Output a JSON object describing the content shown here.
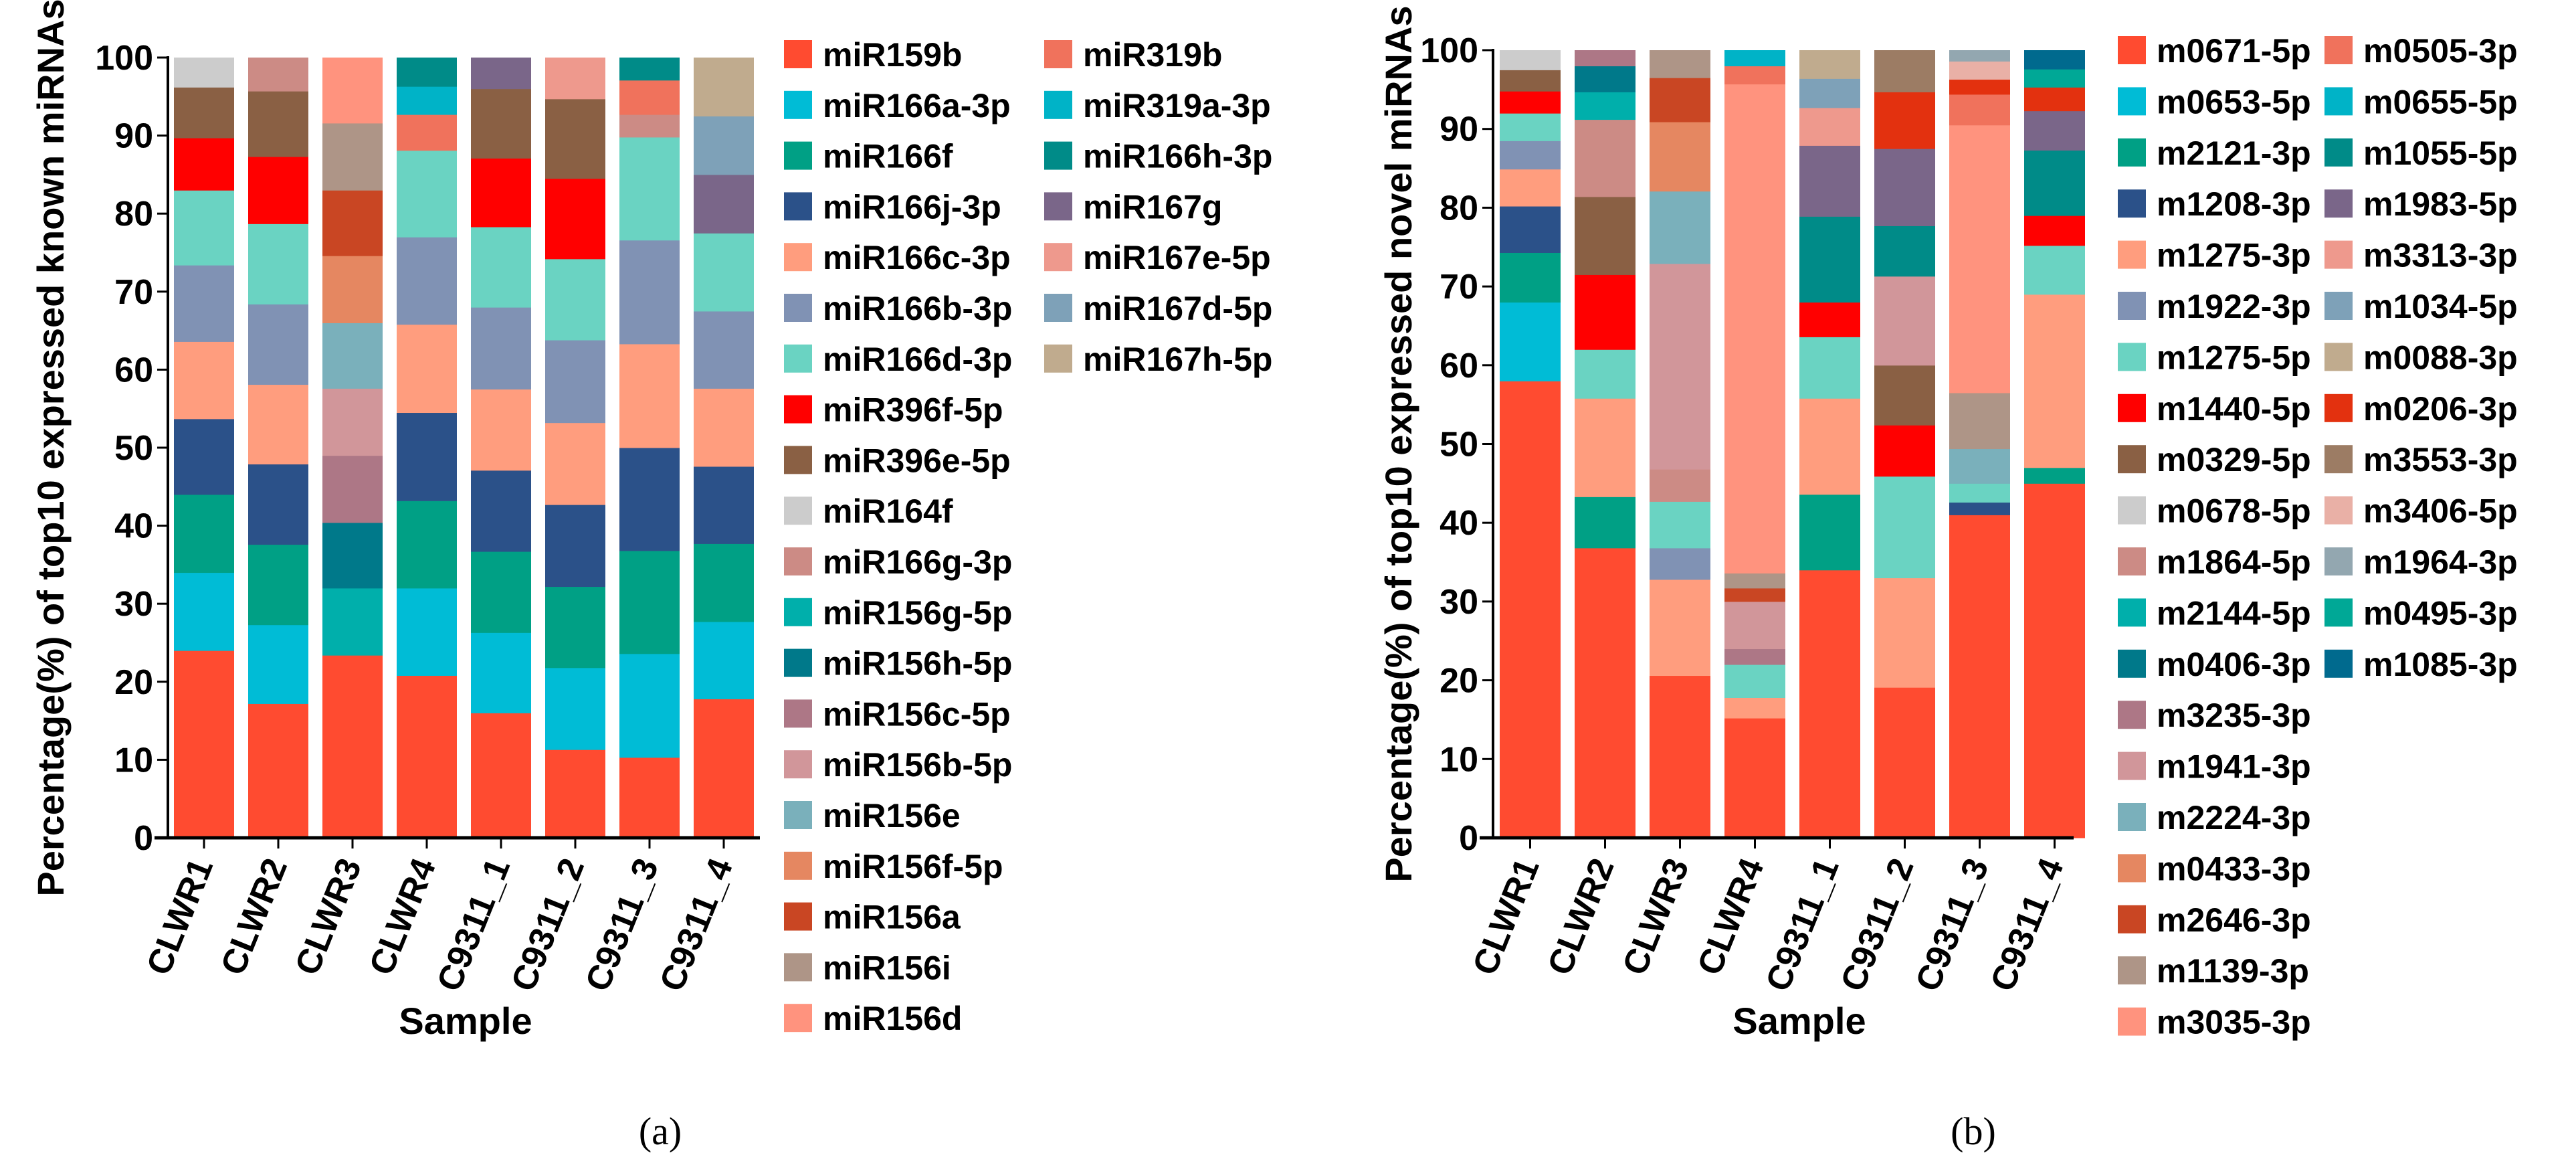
{
  "chart_data": [
    {
      "type": "bar",
      "stacked": true,
      "panel_label": "(a)",
      "title": "",
      "xlabel": "Sample",
      "ylabel": "Percentage(%) of top10 expressed known miRNAs",
      "ylim": [
        0,
        100
      ],
      "yticks": [
        0,
        10,
        20,
        30,
        40,
        50,
        60,
        70,
        80,
        90,
        100
      ],
      "legend_position": "right",
      "categories": [
        "CLWR1",
        "CLWR2",
        "CLWR3",
        "CLWR4",
        "C9311_1",
        "C9311_2",
        "C9311_3",
        "C9311_4"
      ],
      "legend_rows_first_column": 20,
      "series": [
        {
          "name": "miR159b",
          "color": "#FF4B30",
          "values": [
            24,
            17.2,
            23.4,
            20.8,
            16,
            11.3,
            10.3,
            17.8
          ]
        },
        {
          "name": "miR166a-3p",
          "color": "#00BCD6",
          "values": [
            10,
            10.1,
            0,
            11.2,
            10.3,
            10.5,
            13.3,
            9.9
          ]
        },
        {
          "name": "miR166f",
          "color": "#00A085",
          "values": [
            10,
            10.3,
            0,
            11.2,
            10.4,
            10.4,
            13.2,
            10
          ]
        },
        {
          "name": "miR166j-3p",
          "color": "#2B5189",
          "values": [
            9.7,
            10.3,
            0,
            11.3,
            10.4,
            10.5,
            13.2,
            9.9
          ]
        },
        {
          "name": "miR166c-3p",
          "color": "#FF9D7E",
          "values": [
            9.9,
            10.2,
            0,
            11.3,
            10.4,
            10.5,
            13.3,
            10
          ]
        },
        {
          "name": "miR166b-3p",
          "color": "#8092B4",
          "values": [
            9.8,
            10.3,
            0,
            11.2,
            10.5,
            10.6,
            13.3,
            9.9
          ]
        },
        {
          "name": "miR166d-3p",
          "color": "#6AD3C2",
          "values": [
            9.6,
            10.3,
            0,
            11.1,
            10.3,
            10.4,
            13.2,
            10
          ]
        },
        {
          "name": "miR396f-5p",
          "color": "#FF0000",
          "values": [
            6.7,
            8.6,
            0,
            0,
            8.8,
            10.3,
            0,
            0
          ]
        },
        {
          "name": "miR396e-5p",
          "color": "#8A6044",
          "values": [
            6.5,
            8.4,
            0,
            0,
            8.9,
            10.2,
            0,
            0
          ]
        },
        {
          "name": "miR164f",
          "color": "#CCCCCC",
          "values": [
            3.8,
            0,
            0,
            0,
            0,
            0,
            0,
            0
          ]
        },
        {
          "name": "miR166g-3p",
          "color": "#CC8B85",
          "values": [
            0,
            4.3,
            0,
            0,
            0,
            0,
            2.9,
            0
          ]
        },
        {
          "name": "miR156g-5p",
          "color": "#00AFAB",
          "values": [
            0,
            0,
            8.6,
            0,
            0,
            0,
            0,
            0
          ]
        },
        {
          "name": "miR156h-5p",
          "color": "#00798A",
          "values": [
            0,
            0,
            8.4,
            0,
            0,
            0,
            0,
            0
          ]
        },
        {
          "name": "miR156c-5p",
          "color": "#AD7786",
          "values": [
            0,
            0,
            8.6,
            0,
            0,
            0,
            0,
            0
          ]
        },
        {
          "name": "miR156b-5p",
          "color": "#D1969A",
          "values": [
            0,
            0,
            8.6,
            0,
            0,
            0,
            0,
            0
          ]
        },
        {
          "name": "miR156e",
          "color": "#7AB0BB",
          "values": [
            0,
            0,
            8.4,
            0,
            0,
            0,
            0,
            0
          ]
        },
        {
          "name": "miR156f-5p",
          "color": "#E58761",
          "values": [
            0,
            0,
            8.6,
            0,
            0,
            0,
            0,
            0
          ]
        },
        {
          "name": "miR156a",
          "color": "#C94623",
          "values": [
            0,
            0,
            8.4,
            0,
            0,
            0,
            0,
            0
          ]
        },
        {
          "name": "miR156i",
          "color": "#AE9587",
          "values": [
            0,
            0,
            8.6,
            0,
            0,
            0,
            0,
            0
          ]
        },
        {
          "name": "miR156d",
          "color": "#FF937E",
          "values": [
            0,
            0,
            8.4,
            0,
            0,
            0,
            0,
            0
          ]
        },
        {
          "name": "miR319b",
          "color": "#F0725C",
          "values": [
            0,
            0,
            0,
            4.6,
            0,
            0,
            4.4,
            0
          ]
        },
        {
          "name": "miR319a-3p",
          "color": "#00B3C7",
          "values": [
            0,
            0,
            0,
            3.6,
            0,
            0,
            0,
            0
          ]
        },
        {
          "name": "miR166h-3p",
          "color": "#008B88",
          "values": [
            0,
            0,
            0,
            3.7,
            0,
            0,
            2.9,
            0
          ]
        },
        {
          "name": "miR167g",
          "color": "#7A6689",
          "values": [
            0,
            0,
            0,
            0,
            4,
            0,
            0,
            7.5
          ]
        },
        {
          "name": "miR167e-5p",
          "color": "#EE998D",
          "values": [
            0,
            0,
            0,
            0,
            0,
            5.3,
            0,
            0
          ]
        },
        {
          "name": "miR167d-5p",
          "color": "#7EA1B8",
          "values": [
            0,
            0,
            0,
            0,
            0,
            0,
            0,
            7.5
          ]
        },
        {
          "name": "miR167h-5p",
          "color": "#C0AB8E",
          "values": [
            0,
            0,
            0,
            0,
            0,
            0,
            0,
            7.5
          ]
        }
      ]
    },
    {
      "type": "bar",
      "stacked": true,
      "panel_label": "(b)",
      "title": "",
      "xlabel": "Sample",
      "ylabel": "Percentage(%) of top10 expressed novel miRNAs",
      "ylim": [
        0,
        100
      ],
      "yticks": [
        0,
        10,
        20,
        30,
        40,
        50,
        60,
        70,
        80,
        90,
        100
      ],
      "legend_position": "right",
      "categories": [
        "CLWR1",
        "CLWR2",
        "CLWR3",
        "CLWR4",
        "C9311_1",
        "C9311_2",
        "C9311_3",
        "C9311_4"
      ],
      "legend_rows_first_column": 20,
      "series": [
        {
          "name": "m0671-5p",
          "color": "#FF4B30",
          "values": [
            58,
            36.8,
            20.6,
            15.2,
            34,
            19.1,
            41,
            45
          ]
        },
        {
          "name": "m0653-5p",
          "color": "#00BCD6",
          "values": [
            10,
            0,
            0,
            0,
            0,
            0,
            0,
            0
          ]
        },
        {
          "name": "m2121-3p",
          "color": "#00A085",
          "values": [
            6.3,
            6.5,
            0,
            0,
            9.6,
            0,
            0,
            2
          ]
        },
        {
          "name": "m1208-3p",
          "color": "#2B5189",
          "values": [
            5.9,
            0,
            0,
            0,
            0,
            0,
            1.6,
            0
          ]
        },
        {
          "name": "m1275-3p",
          "color": "#FF9D7E",
          "values": [
            4.7,
            12.5,
            12.2,
            2.6,
            12.2,
            13.9,
            0,
            22
          ]
        },
        {
          "name": "m1922-3p",
          "color": "#8092B4",
          "values": [
            3.6,
            0,
            4,
            0,
            0,
            0,
            0,
            0
          ]
        },
        {
          "name": "m1275-5p",
          "color": "#6AD3C2",
          "values": [
            3.5,
            6.2,
            5.9,
            4.2,
            7.8,
            12.9,
            2.4,
            6.2
          ]
        },
        {
          "name": "m1440-5p",
          "color": "#FF0000",
          "values": [
            2.8,
            9.5,
            0,
            0,
            4.4,
            6.5,
            0,
            3.8
          ]
        },
        {
          "name": "m0329-5p",
          "color": "#8A6044",
          "values": [
            2.7,
            9.9,
            0,
            0,
            0,
            7.6,
            0,
            0
          ]
        },
        {
          "name": "m0678-5p",
          "color": "#CCCCCC",
          "values": [
            2.5,
            0,
            0,
            0,
            0,
            0,
            0,
            0
          ]
        },
        {
          "name": "m1864-5p",
          "color": "#CC8B85",
          "values": [
            0,
            9.8,
            4.1,
            0,
            0,
            0,
            0,
            0
          ]
        },
        {
          "name": "m2144-5p",
          "color": "#00AFAB",
          "values": [
            0,
            3.5,
            0,
            0,
            0,
            0,
            0,
            0
          ]
        },
        {
          "name": "m0406-3p",
          "color": "#00798A",
          "values": [
            0,
            3.3,
            0,
            0,
            0,
            0,
            0,
            0
          ]
        },
        {
          "name": "m3235-3p",
          "color": "#AD7786",
          "values": [
            0,
            2,
            0,
            2,
            0,
            0,
            0,
            0
          ]
        },
        {
          "name": "m1941-3p",
          "color": "#D1969A",
          "values": [
            0,
            0,
            26.1,
            6,
            0,
            11.3,
            0,
            0
          ]
        },
        {
          "name": "m2224-3p",
          "color": "#7AB0BB",
          "values": [
            0,
            0,
            9.2,
            0,
            0,
            0,
            4.4,
            0
          ]
        },
        {
          "name": "m0433-3p",
          "color": "#E58761",
          "values": [
            0,
            0,
            8.8,
            0,
            0,
            0,
            0,
            0
          ]
        },
        {
          "name": "m2646-3p",
          "color": "#C94623",
          "values": [
            0,
            0,
            5.6,
            1.7,
            0,
            0,
            0,
            0
          ]
        },
        {
          "name": "m1139-3p",
          "color": "#AE9587",
          "values": [
            0,
            0,
            3.5,
            1.9,
            0,
            0,
            7.1,
            0
          ]
        },
        {
          "name": "m3035-3p",
          "color": "#FF937E",
          "values": [
            0,
            0,
            0,
            62.1,
            0,
            0,
            34,
            0
          ]
        },
        {
          "name": "m0505-3p",
          "color": "#F0725C",
          "values": [
            0,
            0,
            0,
            2.3,
            0,
            0,
            3.9,
            0
          ]
        },
        {
          "name": "m0655-5p",
          "color": "#00B3C7",
          "values": [
            0,
            0,
            0,
            2,
            0,
            0,
            0,
            0
          ]
        },
        {
          "name": "m1055-5p",
          "color": "#008B88",
          "values": [
            0,
            0,
            0,
            0,
            10.9,
            6.4,
            0,
            8.3
          ]
        },
        {
          "name": "m1983-5p",
          "color": "#7A6689",
          "values": [
            0,
            0,
            0,
            0,
            9,
            9.8,
            0,
            5
          ]
        },
        {
          "name": "m3313-3p",
          "color": "#EE998D",
          "values": [
            0,
            0,
            0,
            0,
            4.8,
            0,
            0,
            0
          ]
        },
        {
          "name": "m1034-5p",
          "color": "#7EA1B8",
          "values": [
            0,
            0,
            0,
            0,
            3.7,
            0,
            0,
            0
          ]
        },
        {
          "name": "m0088-3p",
          "color": "#C0AB8E",
          "values": [
            0,
            0,
            0,
            0,
            3.6,
            0,
            0,
            0
          ]
        },
        {
          "name": "m0206-3p",
          "color": "#E3310F",
          "values": [
            0,
            0,
            0,
            0,
            0,
            7.2,
            1.9,
            3
          ]
        },
        {
          "name": "m3553-3p",
          "color": "#9C7C64",
          "values": [
            0,
            0,
            0,
            0,
            0,
            5.3,
            0,
            0
          ]
        },
        {
          "name": "m3406-5p",
          "color": "#E9B0A6",
          "values": [
            0,
            0,
            0,
            0,
            0,
            0,
            2.3,
            0
          ]
        },
        {
          "name": "m1964-3p",
          "color": "#93A7B0",
          "values": [
            0,
            0,
            0,
            0,
            0,
            0,
            1.4,
            0
          ]
        },
        {
          "name": "m0495-3p",
          "color": "#00A896",
          "values": [
            0,
            0,
            0,
            0,
            0,
            0,
            0,
            2.3
          ]
        },
        {
          "name": "m1085-3p",
          "color": "#006A8E",
          "values": [
            0,
            0,
            0,
            0,
            0,
            0,
            0,
            2.4
          ]
        }
      ]
    }
  ]
}
